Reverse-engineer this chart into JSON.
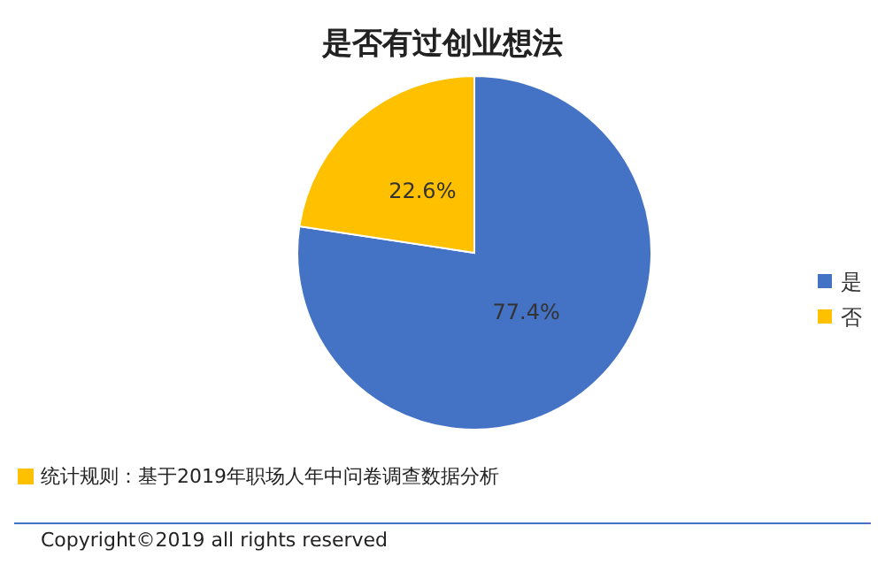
{
  "chart_data": {
    "type": "pie",
    "title": "是否有过创业想法",
    "categories": [
      "是",
      "否"
    ],
    "values": [
      77.4,
      22.6
    ],
    "colors": [
      "#4472c4",
      "#ffc000"
    ],
    "value_labels": [
      "77.4%",
      "22.6%"
    ],
    "legend": "right",
    "annotations": [
      "统计规则：基于2019年职场人年中问卷调查数据分析",
      "Copyright©2019 all rights reserved"
    ]
  }
}
